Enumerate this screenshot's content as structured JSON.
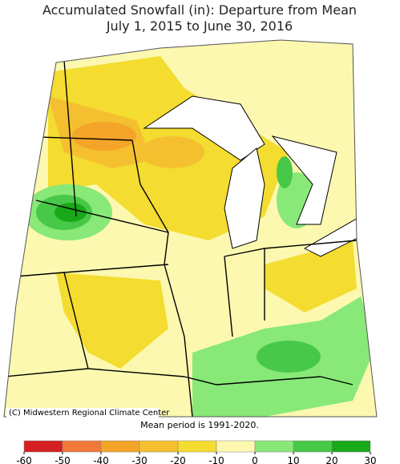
{
  "title": [
    "Accumulated Snowfall (in): Departure from Mean",
    "July 1, 2015 to June 30, 2016"
  ],
  "credit": "(C) Midwestern Regional Climate Center",
  "note": "Mean period is 1991-2020.",
  "legend": {
    "ticks": [
      -60,
      -50,
      -40,
      -30,
      -20,
      -10,
      0,
      10,
      20,
      30
    ],
    "colors": [
      "#d42020",
      "#f07838",
      "#f4a428",
      "#f4c030",
      "#f4dc30",
      "#fcf8b0",
      "#88e878",
      "#48c848",
      "#18a818"
    ]
  }
}
